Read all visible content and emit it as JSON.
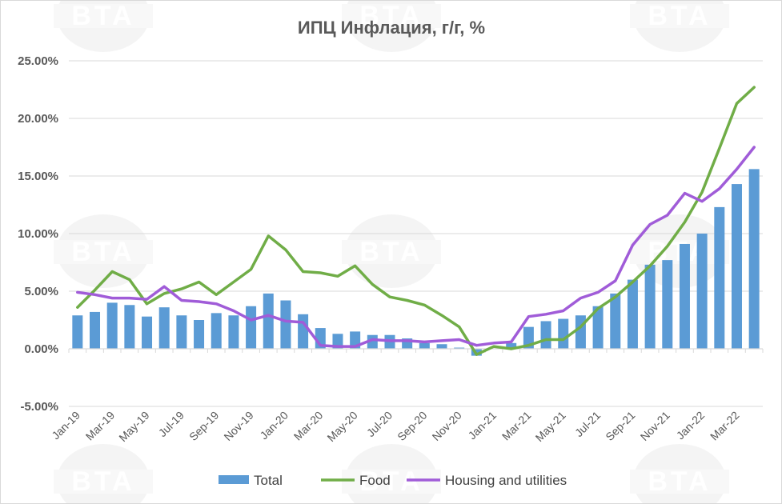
{
  "chart_data": {
    "type": "bar+line",
    "title": "ИПЦ Инфлация, г/г, %",
    "xlabel": "",
    "ylabel": "",
    "ylim": [
      -5,
      25
    ],
    "yticks": [
      -5,
      0,
      5,
      10,
      15,
      20,
      25
    ],
    "ytick_labels": [
      "-5.00%",
      "0.00%",
      "5.00%",
      "10.00%",
      "15.00%",
      "20.00%",
      "25.00%"
    ],
    "categories": [
      "Jan-19",
      "Feb-19",
      "Mar-19",
      "Apr-19",
      "May-19",
      "Jun-19",
      "Jul-19",
      "Aug-19",
      "Sep-19",
      "Oct-19",
      "Nov-19",
      "Dec-19",
      "Jan-20",
      "Feb-20",
      "Mar-20",
      "Apr-20",
      "May-20",
      "Jun-20",
      "Jul-20",
      "Aug-20",
      "Sep-20",
      "Oct-20",
      "Nov-20",
      "Dec-20",
      "Jan-21",
      "Feb-21",
      "Mar-21",
      "Apr-21",
      "May-21",
      "Jun-21",
      "Jul-21",
      "Aug-21",
      "Sep-21",
      "Oct-21",
      "Nov-21",
      "Dec-21",
      "Jan-22",
      "Feb-22",
      "Mar-22",
      "Apr-22"
    ],
    "xtick_labels": [
      "Jan-19",
      "Mar-19",
      "May-19",
      "Jul-19",
      "Sep-19",
      "Nov-19",
      "Jan-20",
      "Mar-20",
      "May-20",
      "Jul-20",
      "Sep-20",
      "Nov-20",
      "Jan-21",
      "Mar-21",
      "May-21",
      "Jul-21",
      "Sep-21",
      "Nov-21",
      "Jan-22",
      "Mar-22"
    ],
    "legend_position": "bottom",
    "grid": "horizontal",
    "series": [
      {
        "name": "Total",
        "kind": "bar",
        "color": "#5b9bd5",
        "values": [
          2.9,
          3.2,
          4.0,
          3.8,
          2.8,
          3.6,
          2.9,
          2.5,
          3.1,
          2.9,
          3.7,
          4.8,
          4.2,
          3.0,
          1.8,
          1.3,
          1.5,
          1.2,
          1.2,
          0.9,
          0.5,
          0.4,
          0.1,
          -0.6,
          0.0,
          0.5,
          1.9,
          2.4,
          2.6,
          2.9,
          3.7,
          4.8,
          6.0,
          7.3,
          7.7,
          9.1,
          10.0,
          12.3,
          14.3,
          15.6
        ]
      },
      {
        "name": "Food",
        "kind": "line",
        "color": "#70ad47",
        "values": [
          3.6,
          5.1,
          6.7,
          6.0,
          3.9,
          4.8,
          5.2,
          5.8,
          4.7,
          5.8,
          6.9,
          9.8,
          8.6,
          6.7,
          6.6,
          6.3,
          7.2,
          5.6,
          4.5,
          4.2,
          3.8,
          2.9,
          1.9,
          -0.5,
          0.2,
          0.0,
          0.3,
          0.8,
          0.8,
          1.9,
          3.5,
          4.5,
          5.8,
          7.2,
          8.9,
          11.0,
          13.6,
          17.4,
          21.3,
          22.7
        ]
      },
      {
        "name": "Housing and utilities",
        "kind": "line",
        "color": "#a05cd8",
        "values": [
          4.9,
          4.7,
          4.4,
          4.4,
          4.3,
          5.4,
          4.2,
          4.1,
          3.9,
          3.3,
          2.5,
          2.9,
          2.4,
          2.3,
          0.3,
          0.2,
          0.2,
          0.8,
          0.7,
          0.7,
          0.6,
          0.7,
          0.8,
          0.3,
          0.5,
          0.6,
          2.8,
          3.0,
          3.3,
          4.4,
          4.9,
          5.9,
          9.0,
          10.8,
          11.6,
          13.5,
          12.8,
          13.9,
          15.6,
          17.5
        ]
      }
    ]
  },
  "watermark": "BTA"
}
